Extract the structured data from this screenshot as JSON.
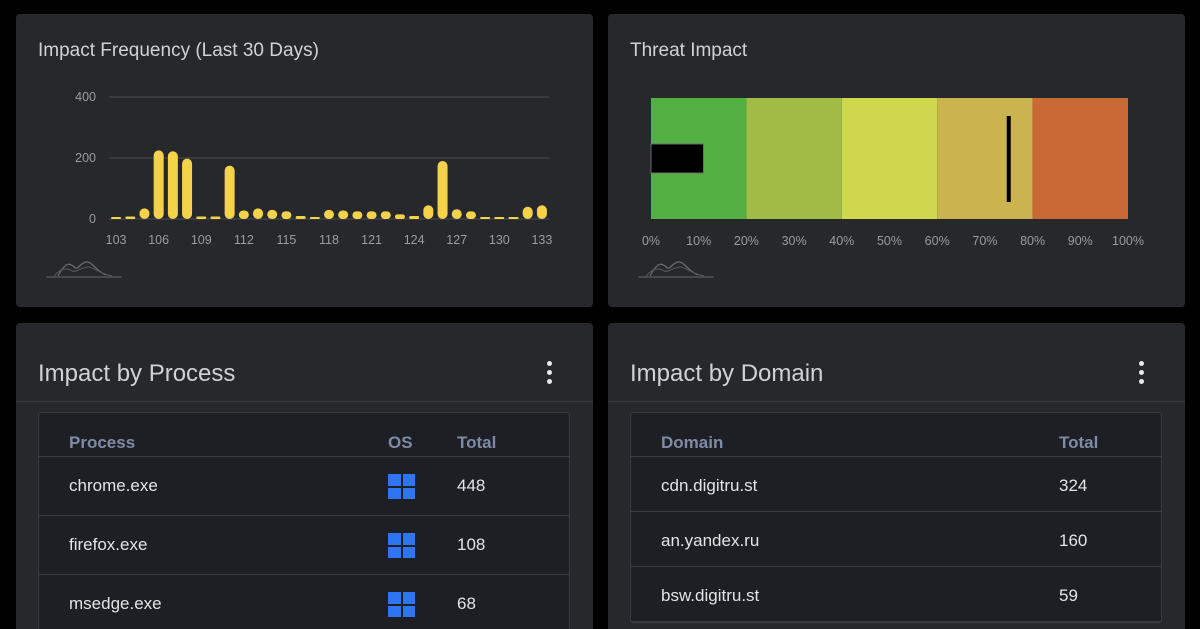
{
  "freq_card": {
    "title": "Impact Frequency (Last 30 Days)",
    "sparkline_icon": "sparkline-icon"
  },
  "threat_card": {
    "title": "Threat Impact",
    "sparkline_icon": "sparkline-icon"
  },
  "chart_data": [
    {
      "type": "bar",
      "title": "Impact Frequency (Last 30 Days)",
      "xlabel": "",
      "ylabel": "",
      "ylim": [
        0,
        400
      ],
      "yticks": [
        0,
        200,
        400
      ],
      "xticks": [
        103,
        106,
        109,
        112,
        115,
        118,
        121,
        124,
        127,
        130,
        133
      ],
      "x": [
        103,
        104,
        105,
        106,
        107,
        108,
        109,
        110,
        111,
        112,
        113,
        114,
        115,
        116,
        117,
        118,
        119,
        120,
        121,
        122,
        123,
        124,
        125,
        126,
        127,
        128,
        129,
        130,
        131,
        132,
        133
      ],
      "values": [
        4,
        8,
        35,
        225,
        222,
        198,
        8,
        8,
        175,
        28,
        35,
        30,
        25,
        10,
        5,
        30,
        28,
        25,
        25,
        25,
        15,
        10,
        45,
        190,
        32,
        25,
        5,
        3,
        3,
        40,
        45
      ],
      "color": "#f4d24a",
      "grid": true,
      "legend": "none"
    },
    {
      "type": "bar",
      "title": "Threat Impact",
      "xlim": [
        0,
        100
      ],
      "xticks": [
        "0%",
        "10%",
        "20%",
        "30%",
        "40%",
        "50%",
        "60%",
        "70%",
        "80%",
        "90%",
        "100%"
      ],
      "bands": [
        {
          "from": 0,
          "to": 20,
          "color": "#55b043"
        },
        {
          "from": 20,
          "to": 40,
          "color": "#a2ba46"
        },
        {
          "from": 40,
          "to": 60,
          "color": "#cfd74c"
        },
        {
          "from": 60,
          "to": 80,
          "color": "#cbb34f"
        },
        {
          "from": 80,
          "to": 100,
          "color": "#c96936"
        }
      ],
      "value": 11,
      "target": 75,
      "legend": "none"
    }
  ],
  "process_card": {
    "title": "Impact by Process",
    "menu_icon": "kebab-menu-icon",
    "headers": {
      "process": "Process",
      "os": "OS",
      "total": "Total"
    },
    "rows": [
      {
        "process": "chrome.exe",
        "os_icon": "windows-icon",
        "total": "448"
      },
      {
        "process": "firefox.exe",
        "os_icon": "windows-icon",
        "total": "108"
      },
      {
        "process": "msedge.exe",
        "os_icon": "windows-icon",
        "total": "68"
      }
    ]
  },
  "domain_card": {
    "title": "Impact by Domain",
    "menu_icon": "kebab-menu-icon",
    "headers": {
      "domain": "Domain",
      "total": "Total"
    },
    "rows": [
      {
        "domain": "cdn.digitru.st",
        "total": "324"
      },
      {
        "domain": "an.yandex.ru",
        "total": "160"
      },
      {
        "domain": "bsw.digitru.st",
        "total": "59"
      }
    ]
  },
  "colors": {
    "background": "#000000",
    "card": "#26282c",
    "table": "#1d1f25",
    "bar": "#f4d24a",
    "header_text": "#7f8ba6",
    "windows_blue": "#2f74f0"
  }
}
